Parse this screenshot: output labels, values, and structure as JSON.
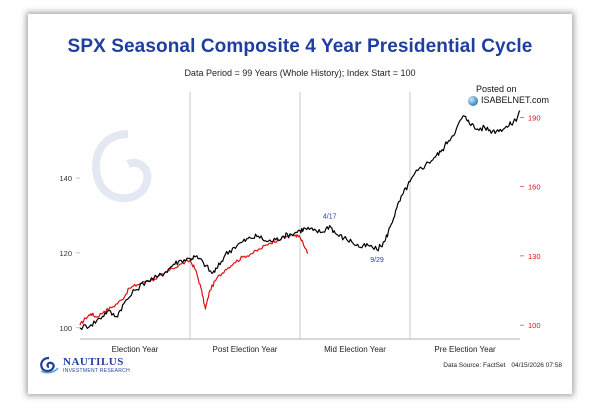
{
  "title": "SPX Seasonal Composite 4 Year Presidential Cycle",
  "subtitle": "Data Period = 99 Years (Whole History); Index Start = 100",
  "posted_line1": "Posted on",
  "posted_line2": "ISABELNET.com",
  "brand": {
    "name": "NAUTILUS",
    "sub": "INVESTMENT RESEARCH"
  },
  "footer": {
    "source": "Data Source: FactSet",
    "date": "04/15/2026 07:58"
  },
  "colors": {
    "title": "#1f3fa0",
    "black_series": "#000000",
    "red_series": "#e01010",
    "annotation": "#1f3fa0"
  },
  "chart_data": {
    "type": "line",
    "x_categories": [
      "Election Year",
      "Post Election Year",
      "Mid Election Year",
      "Pre Election Year"
    ],
    "x_range": [
      0,
      4
    ],
    "left_axis": {
      "ticks": [
        100,
        120,
        140
      ],
      "range": [
        97,
        163
      ]
    },
    "right_axis": {
      "ticks": [
        100,
        130,
        160,
        190
      ],
      "range": [
        94,
        201
      ],
      "color": "#e01010"
    },
    "grid": false,
    "annotations": [
      {
        "label": "4/17",
        "x": 2.27,
        "y": 127.3
      },
      {
        "label": "9/29",
        "x": 2.7,
        "y": 120.8
      }
    ],
    "series": [
      {
        "color": "#000000",
        "axis": "left",
        "points": [
          [
            0.0,
            100.0
          ],
          [
            0.1,
            100.8
          ],
          [
            0.18,
            102.5
          ],
          [
            0.25,
            104.5
          ],
          [
            0.33,
            103.0
          ],
          [
            0.4,
            106.5
          ],
          [
            0.5,
            110.0
          ],
          [
            0.6,
            112.5
          ],
          [
            0.7,
            113.5
          ],
          [
            0.78,
            115.0
          ],
          [
            0.85,
            117.0
          ],
          [
            0.92,
            118.0
          ],
          [
            1.0,
            118.5
          ],
          [
            1.05,
            119.0
          ],
          [
            1.12,
            117.5
          ],
          [
            1.2,
            114.5
          ],
          [
            1.25,
            116.0
          ],
          [
            1.32,
            119.5
          ],
          [
            1.4,
            121.5
          ],
          [
            1.48,
            123.0
          ],
          [
            1.55,
            124.0
          ],
          [
            1.62,
            124.5
          ],
          [
            1.7,
            123.0
          ],
          [
            1.78,
            123.5
          ],
          [
            1.85,
            124.5
          ],
          [
            1.92,
            125.0
          ],
          [
            2.0,
            126.0
          ],
          [
            2.05,
            126.5
          ],
          [
            2.12,
            126.0
          ],
          [
            2.2,
            125.5
          ],
          [
            2.27,
            127.3
          ],
          [
            2.33,
            125.0
          ],
          [
            2.4,
            124.0
          ],
          [
            2.47,
            123.0
          ],
          [
            2.55,
            121.5
          ],
          [
            2.62,
            122.0
          ],
          [
            2.7,
            120.8
          ],
          [
            2.77,
            123.0
          ],
          [
            2.82,
            127.0
          ],
          [
            2.88,
            132.0
          ],
          [
            2.94,
            136.0
          ],
          [
            3.0,
            139.0
          ],
          [
            3.07,
            142.0
          ],
          [
            3.14,
            143.5
          ],
          [
            3.22,
            145.5
          ],
          [
            3.28,
            147.0
          ],
          [
            3.35,
            150.0
          ],
          [
            3.42,
            153.0
          ],
          [
            3.48,
            156.5
          ],
          [
            3.53,
            155.5
          ],
          [
            3.6,
            153.0
          ],
          [
            3.68,
            153.5
          ],
          [
            3.75,
            152.5
          ],
          [
            3.82,
            153.0
          ],
          [
            3.9,
            154.0
          ],
          [
            3.96,
            155.5
          ],
          [
            4.0,
            158.0
          ]
        ]
      },
      {
        "color": "#e01010",
        "axis": "right",
        "points": [
          [
            0.0,
            100.0
          ],
          [
            0.05,
            103.0
          ],
          [
            0.1,
            105.0
          ],
          [
            0.15,
            103.5
          ],
          [
            0.22,
            106.0
          ],
          [
            0.3,
            108.0
          ],
          [
            0.38,
            111.0
          ],
          [
            0.45,
            116.0
          ],
          [
            0.52,
            117.5
          ],
          [
            0.6,
            119.0
          ],
          [
            0.68,
            120.0
          ],
          [
            0.76,
            122.0
          ],
          [
            0.84,
            124.5
          ],
          [
            0.92,
            126.5
          ],
          [
            1.0,
            128.0
          ],
          [
            1.05,
            124.0
          ],
          [
            1.1,
            116.0
          ],
          [
            1.14,
            107.0
          ],
          [
            1.18,
            115.0
          ],
          [
            1.24,
            120.0
          ],
          [
            1.32,
            124.0
          ],
          [
            1.4,
            127.0
          ],
          [
            1.48,
            129.5
          ],
          [
            1.56,
            131.0
          ],
          [
            1.64,
            133.0
          ],
          [
            1.72,
            135.5
          ],
          [
            1.8,
            137.0
          ],
          [
            1.88,
            138.5
          ],
          [
            1.96,
            139.0
          ],
          [
            2.0,
            138.0
          ],
          [
            2.04,
            134.0
          ],
          [
            2.07,
            131.0
          ]
        ]
      }
    ]
  }
}
